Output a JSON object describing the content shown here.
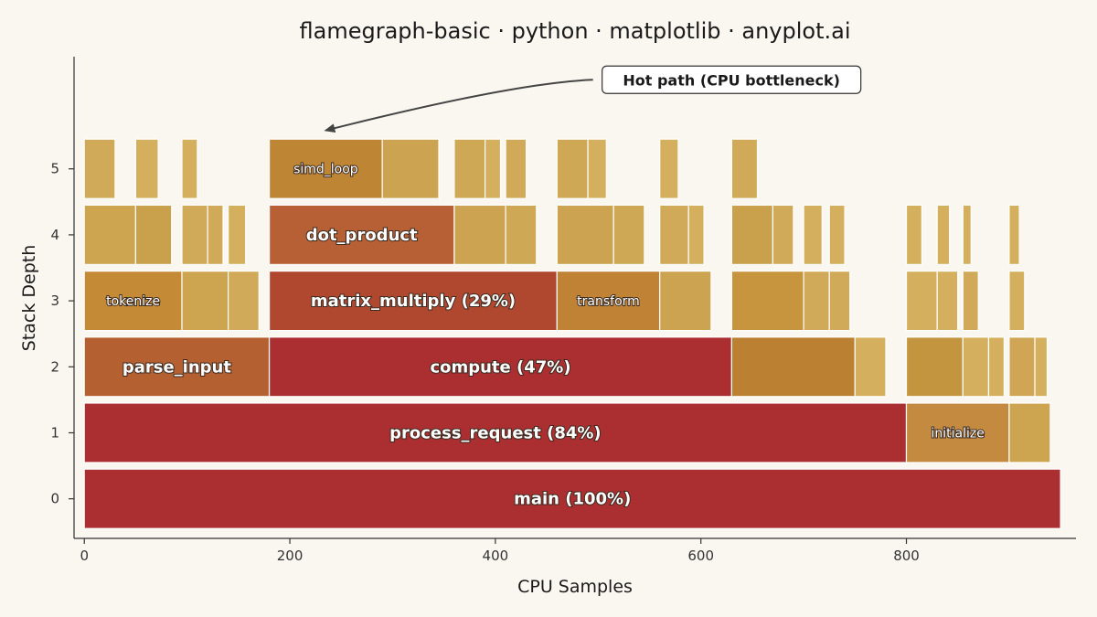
{
  "chart_data": {
    "type": "flamegraph",
    "title": "flamegraph-basic · python · matplotlib · anyplot.ai",
    "xlabel": "CPU Samples",
    "ylabel": "Stack Depth",
    "xlim": [
      -10,
      965
    ],
    "ylim": [
      -0.6,
      6.7
    ],
    "xticks": [
      0,
      200,
      400,
      600,
      800
    ],
    "yticks": [
      0,
      1,
      2,
      3,
      4,
      5
    ],
    "grid": false,
    "annotation": {
      "text": "Hot path (CPU bottleneck)",
      "target": {
        "x": 235,
        "depth": 5.5
      },
      "anchor": {
        "x": 495,
        "depth": 6.35
      }
    },
    "frames": [
      {
        "depth": 0,
        "start": 0,
        "width": 950,
        "label": "main (100%)",
        "color": "#ab2e30"
      },
      {
        "depth": 1,
        "start": 0,
        "width": 800,
        "label": "process_request (84%)",
        "color": "#ab2e30"
      },
      {
        "depth": 1,
        "start": 800,
        "width": 100,
        "label": "initialize",
        "color": "#c48b40"
      },
      {
        "depth": 1,
        "start": 900,
        "width": 40,
        "label": "",
        "color": "#cda550"
      },
      {
        "depth": 2,
        "start": 0,
        "width": 180,
        "label": "parse_input",
        "color": "#b56030"
      },
      {
        "depth": 2,
        "start": 180,
        "width": 450,
        "label": "compute (47%)",
        "color": "#ab2e30"
      },
      {
        "depth": 2,
        "start": 630,
        "width": 120,
        "label": "",
        "color": "#bc8033"
      },
      {
        "depth": 2,
        "start": 750,
        "width": 30,
        "label": "",
        "color": "#d4b05e"
      },
      {
        "depth": 2,
        "start": 800,
        "width": 55,
        "label": "",
        "color": "#c4953f"
      },
      {
        "depth": 2,
        "start": 855,
        "width": 25,
        "label": "",
        "color": "#d4b05e"
      },
      {
        "depth": 2,
        "start": 880,
        "width": 15,
        "label": "",
        "color": "#d4b05e"
      },
      {
        "depth": 2,
        "start": 900,
        "width": 25,
        "label": "",
        "color": "#d0a656"
      },
      {
        "depth": 2,
        "start": 925,
        "width": 12,
        "label": "",
        "color": "#d4b05e"
      },
      {
        "depth": 3,
        "start": 0,
        "width": 95,
        "label": "tokenize",
        "color": "#c48a35"
      },
      {
        "depth": 3,
        "start": 95,
        "width": 45,
        "label": "",
        "color": "#cda550"
      },
      {
        "depth": 3,
        "start": 140,
        "width": 30,
        "label": "",
        "color": "#d0aa58"
      },
      {
        "depth": 3,
        "start": 180,
        "width": 280,
        "label": "matrix_multiply (29%)",
        "color": "#b04830"
      },
      {
        "depth": 3,
        "start": 460,
        "width": 100,
        "label": "transform",
        "color": "#c08235"
      },
      {
        "depth": 3,
        "start": 560,
        "width": 50,
        "label": "",
        "color": "#cca350"
      },
      {
        "depth": 3,
        "start": 630,
        "width": 70,
        "label": "",
        "color": "#c8953f"
      },
      {
        "depth": 3,
        "start": 700,
        "width": 25,
        "label": "",
        "color": "#d0aa58"
      },
      {
        "depth": 3,
        "start": 725,
        "width": 20,
        "label": "",
        "color": "#d0aa58"
      },
      {
        "depth": 3,
        "start": 800,
        "width": 30,
        "label": "",
        "color": "#d4b05e"
      },
      {
        "depth": 3,
        "start": 830,
        "width": 20,
        "label": "",
        "color": "#d4b05e"
      },
      {
        "depth": 3,
        "start": 855,
        "width": 15,
        "label": "",
        "color": "#d0aa58"
      },
      {
        "depth": 3,
        "start": 900,
        "width": 15,
        "label": "",
        "color": "#d4b05e"
      },
      {
        "depth": 4,
        "start": 0,
        "width": 50,
        "label": "",
        "color": "#cda550"
      },
      {
        "depth": 4,
        "start": 50,
        "width": 35,
        "label": "",
        "color": "#c9a04c"
      },
      {
        "depth": 4,
        "start": 95,
        "width": 25,
        "label": "",
        "color": "#d0aa58"
      },
      {
        "depth": 4,
        "start": 120,
        "width": 15,
        "label": "",
        "color": "#d0aa58"
      },
      {
        "depth": 4,
        "start": 140,
        "width": 17,
        "label": "",
        "color": "#d4b05e"
      },
      {
        "depth": 4,
        "start": 180,
        "width": 180,
        "label": "dot_product",
        "color": "#b86035"
      },
      {
        "depth": 4,
        "start": 360,
        "width": 50,
        "label": "",
        "color": "#cca350"
      },
      {
        "depth": 4,
        "start": 410,
        "width": 30,
        "label": "",
        "color": "#cfa855"
      },
      {
        "depth": 4,
        "start": 460,
        "width": 55,
        "label": "",
        "color": "#cca350"
      },
      {
        "depth": 4,
        "start": 515,
        "width": 30,
        "label": "",
        "color": "#cfa855"
      },
      {
        "depth": 4,
        "start": 560,
        "width": 28,
        "label": "",
        "color": "#d0aa58"
      },
      {
        "depth": 4,
        "start": 588,
        "width": 15,
        "label": "",
        "color": "#d4b05e"
      },
      {
        "depth": 4,
        "start": 630,
        "width": 40,
        "label": "",
        "color": "#c9a04c"
      },
      {
        "depth": 4,
        "start": 670,
        "width": 20,
        "label": "",
        "color": "#d0aa58"
      },
      {
        "depth": 4,
        "start": 700,
        "width": 18,
        "label": "",
        "color": "#d4b05e"
      },
      {
        "depth": 4,
        "start": 725,
        "width": 15,
        "label": "",
        "color": "#d4b05e"
      },
      {
        "depth": 4,
        "start": 800,
        "width": 15,
        "label": "",
        "color": "#d4b05e"
      },
      {
        "depth": 4,
        "start": 830,
        "width": 12,
        "label": "",
        "color": "#d4b05e"
      },
      {
        "depth": 4,
        "start": 855,
        "width": 8,
        "label": "",
        "color": "#d4b05e"
      },
      {
        "depth": 4,
        "start": 900,
        "width": 10,
        "label": "",
        "color": "#d4b05e"
      },
      {
        "depth": 5,
        "start": 0,
        "width": 30,
        "label": "",
        "color": "#d0aa58"
      },
      {
        "depth": 5,
        "start": 50,
        "width": 22,
        "label": "",
        "color": "#d4b05e"
      },
      {
        "depth": 5,
        "start": 95,
        "width": 15,
        "label": "",
        "color": "#d4b05e"
      },
      {
        "depth": 5,
        "start": 180,
        "width": 110,
        "label": "simd_loop",
        "color": "#be8535"
      },
      {
        "depth": 5,
        "start": 290,
        "width": 55,
        "label": "",
        "color": "#cca350"
      },
      {
        "depth": 5,
        "start": 360,
        "width": 30,
        "label": "",
        "color": "#cfa855"
      },
      {
        "depth": 5,
        "start": 390,
        "width": 15,
        "label": "",
        "color": "#d4b05e"
      },
      {
        "depth": 5,
        "start": 410,
        "width": 20,
        "label": "",
        "color": "#d0aa58"
      },
      {
        "depth": 5,
        "start": 460,
        "width": 30,
        "label": "",
        "color": "#cfa855"
      },
      {
        "depth": 5,
        "start": 490,
        "width": 18,
        "label": "",
        "color": "#d4b05e"
      },
      {
        "depth": 5,
        "start": 560,
        "width": 18,
        "label": "",
        "color": "#d4b05e"
      },
      {
        "depth": 5,
        "start": 630,
        "width": 25,
        "label": "",
        "color": "#d0aa58"
      }
    ]
  }
}
